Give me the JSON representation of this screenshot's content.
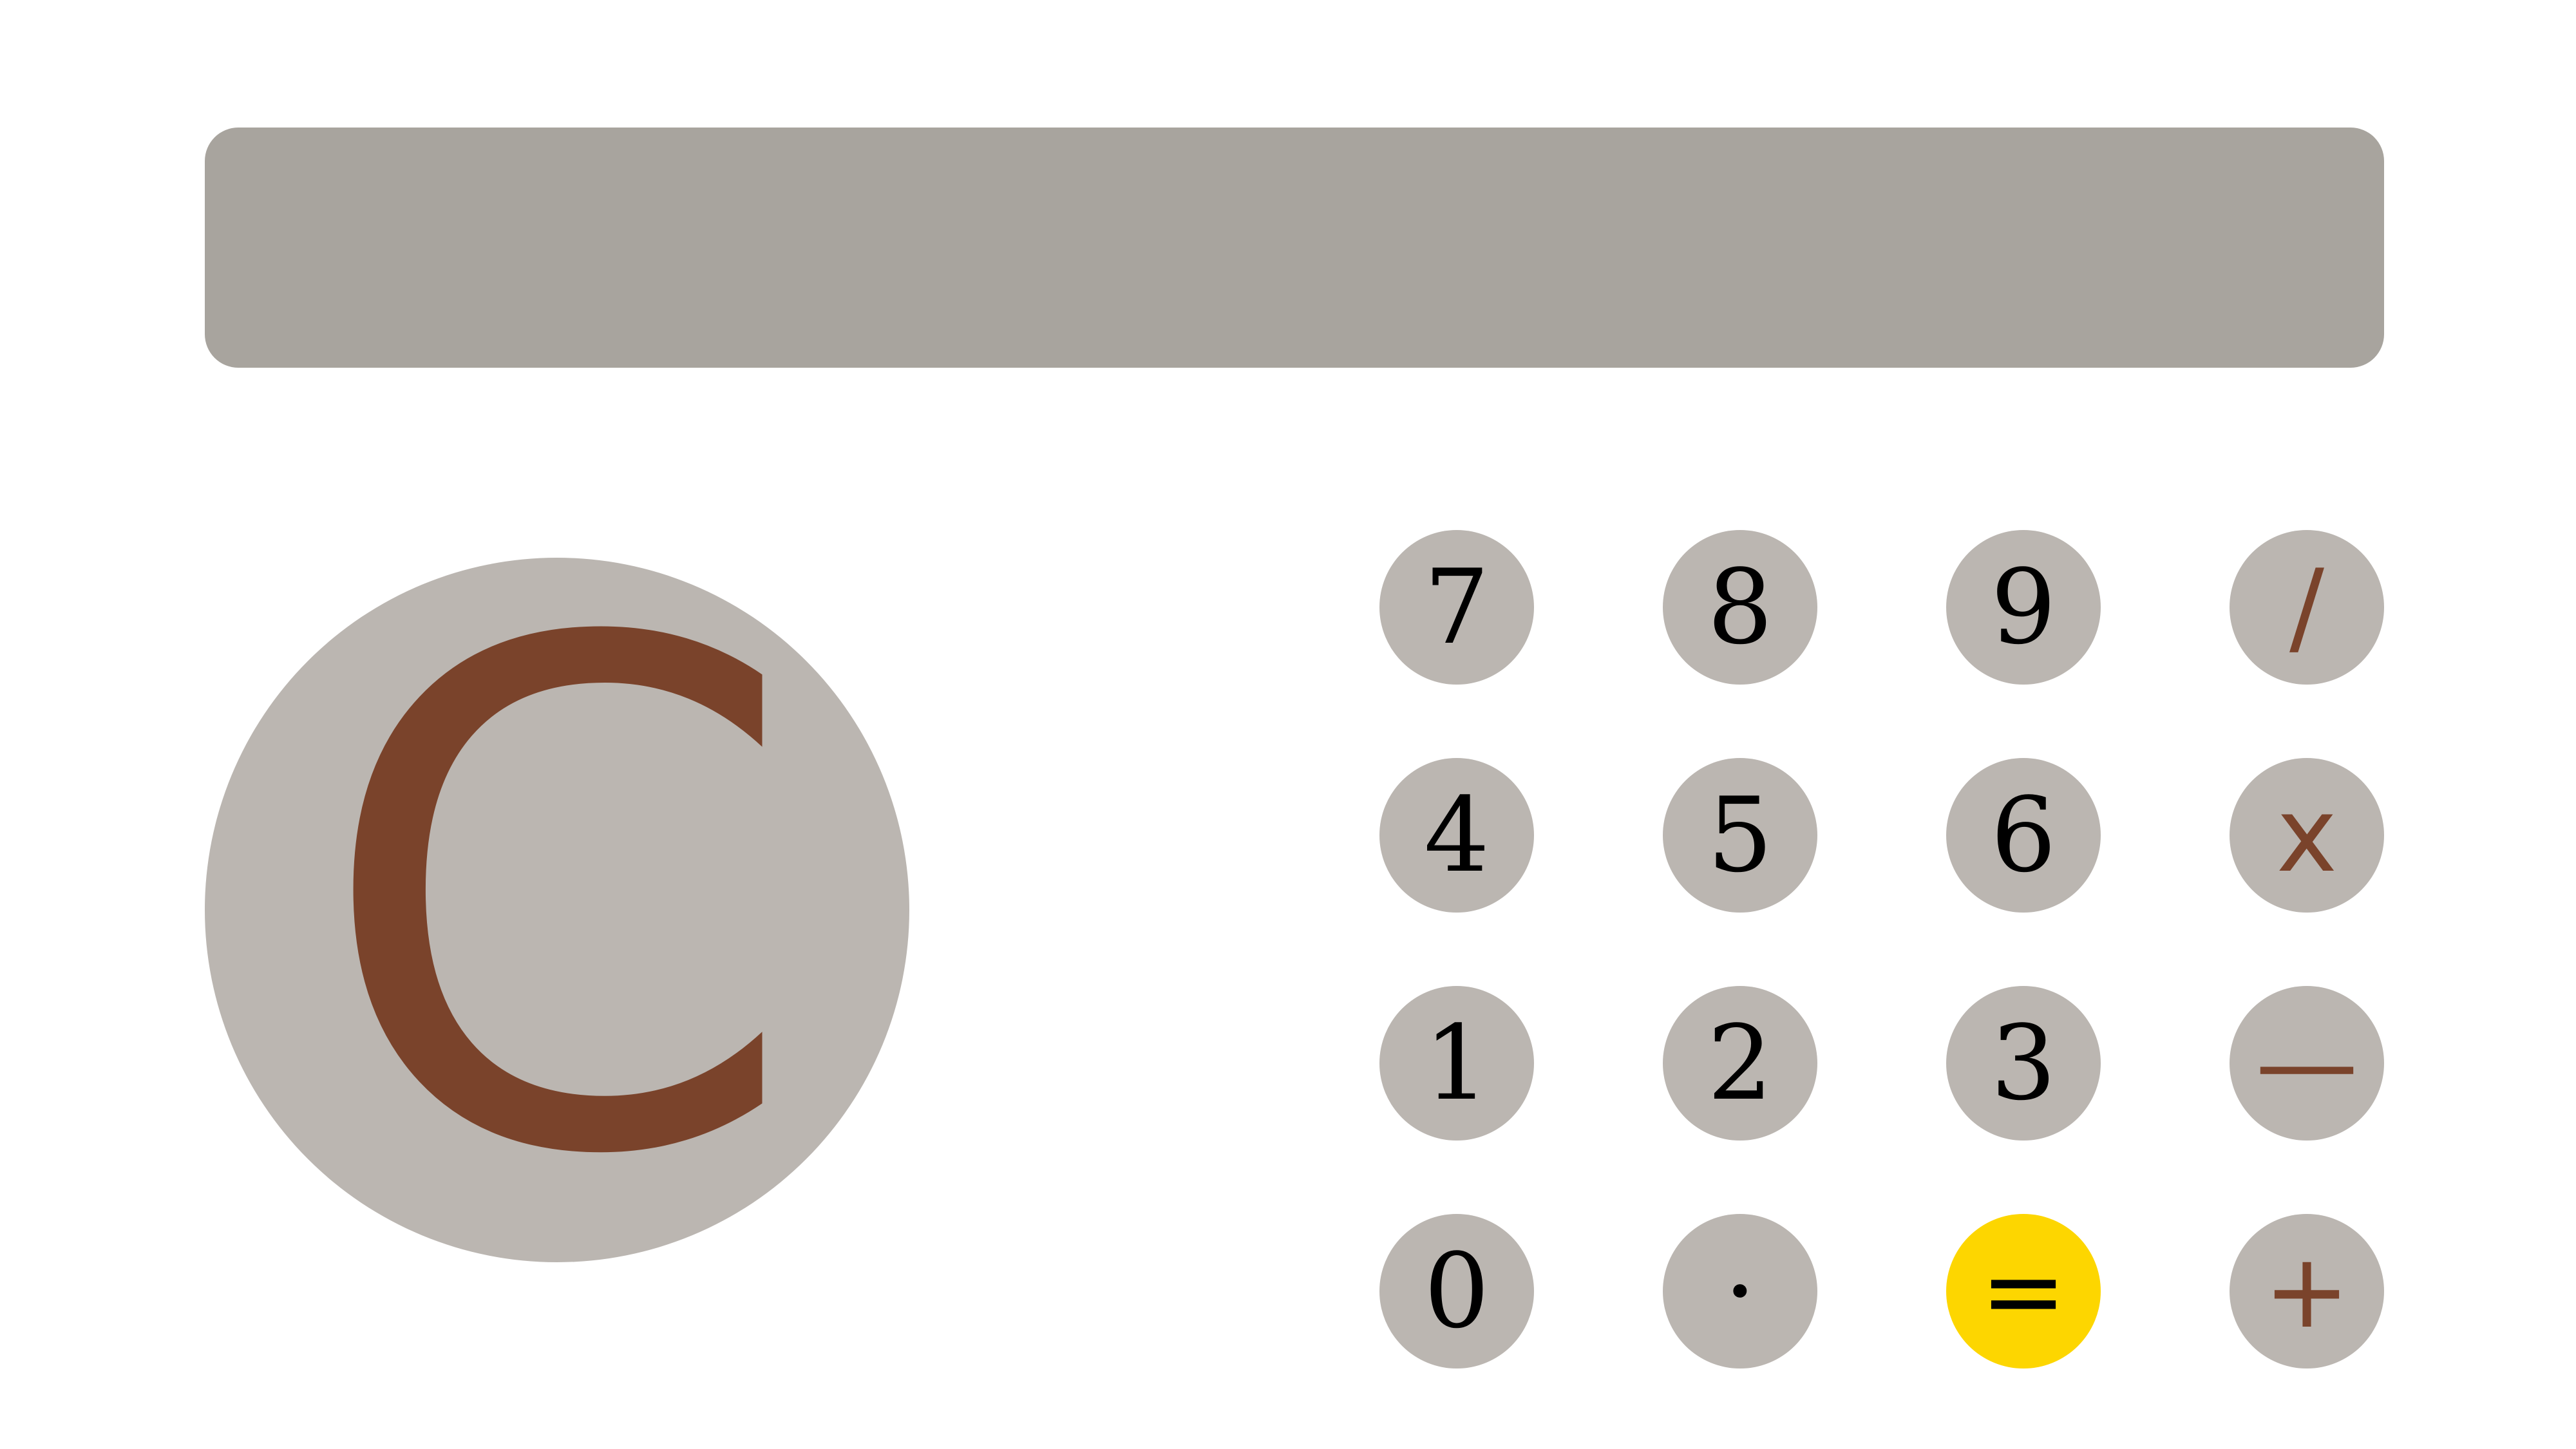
{
  "display": {
    "value": ""
  },
  "clear_button": {
    "label": "C"
  },
  "keys": {
    "seven": "7",
    "eight": "8",
    "nine": "9",
    "divide": "/",
    "four": "4",
    "five": "5",
    "six": "6",
    "multiply": "x",
    "one": "1",
    "two": "2",
    "three": "3",
    "subtract": "—",
    "zero": "0",
    "decimal": "·",
    "equals": "=",
    "add": "+"
  },
  "colors": {
    "display_bg": "#a8a49e",
    "button_bg": "#bbb6b1",
    "operator_text": "#7a432b",
    "equals_bg": "#fdd600"
  }
}
